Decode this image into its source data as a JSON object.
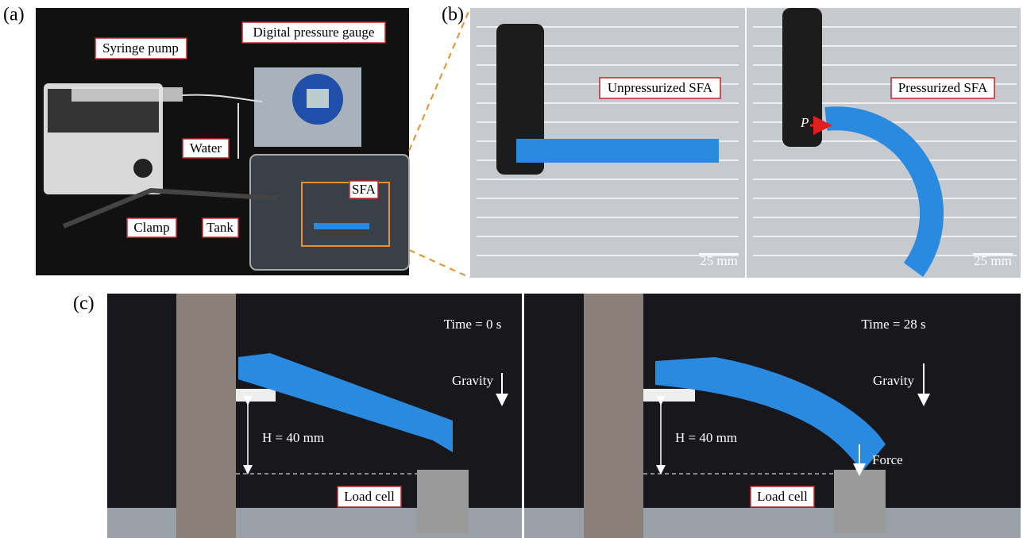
{
  "panels": [
    {
      "label": "(a)",
      "annotations": [
        "Syringe pump",
        "Digital pressure gauge",
        "Water",
        "Clamp",
        "Tank",
        "SFA"
      ]
    },
    {
      "label": "(b)",
      "images": [
        {
          "caption": "Unpressurized SFA",
          "scale_bar": "25 mm"
        },
        {
          "caption": "Pressurized SFA",
          "pressure_symbol": "P",
          "scale_bar": "25 mm"
        }
      ]
    },
    {
      "label": "(c)",
      "images": [
        {
          "time": "Time = 0 s",
          "direction": "Gravity",
          "height": "H = 40 mm",
          "sensor": "Load cell"
        },
        {
          "time": "Time = 28 s",
          "direction": "Gravity",
          "height": "H = 40 mm",
          "force": "Force",
          "sensor": "Load cell"
        }
      ]
    }
  ]
}
